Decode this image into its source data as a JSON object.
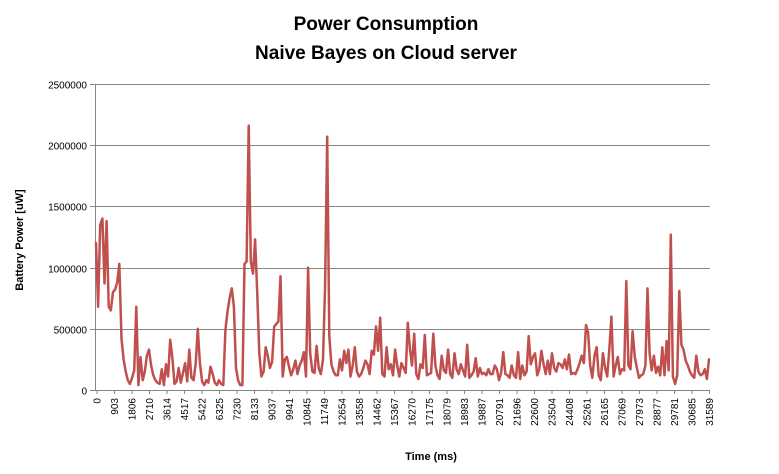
{
  "chart_data": {
    "type": "line",
    "title": [
      "Power Consumption",
      "Naive Bayes on Cloud server"
    ],
    "xlabel": "Time (ms)",
    "ylabel": "Battery Power [uW]",
    "ylim": [
      0,
      2500000
    ],
    "yticks": [
      0,
      500000,
      1000000,
      1500000,
      2000000,
      2500000
    ],
    "ytick_labels": [
      "0",
      "500000",
      "1000000",
      "1500000",
      "2000000",
      "2500000"
    ],
    "xtick_labels": [
      "0",
      "903",
      "1806",
      "2710",
      "3614",
      "4517",
      "5422",
      "6325",
      "7230",
      "8133",
      "9037",
      "9941",
      "10845",
      "11749",
      "12654",
      "13558",
      "14462",
      "15367",
      "16270",
      "17175",
      "18079",
      "18983",
      "19887",
      "20791",
      "21696",
      "22600",
      "23504",
      "24408",
      "25261",
      "26165",
      "27069",
      "27973",
      "28877",
      "29781",
      "30685",
      "31589"
    ],
    "grid": {
      "horizontal": true,
      "vertical": false
    },
    "legend": "none",
    "series_color": "#C0504D",
    "series": [
      {
        "values": [
          1200000,
          680000,
          1350000,
          1400000,
          870000,
          1380000,
          680000,
          650000,
          800000,
          820000,
          880000,
          1030000,
          420000,
          250000,
          150000,
          80000,
          50000,
          100000,
          160000,
          680000,
          40000,
          270000,
          80000,
          150000,
          280000,
          330000,
          200000,
          120000,
          80000,
          60000,
          50000,
          170000,
          40000,
          210000,
          110000,
          410000,
          260000,
          50000,
          70000,
          180000,
          60000,
          140000,
          220000,
          70000,
          330000,
          100000,
          80000,
          220000,
          500000,
          220000,
          70000,
          40000,
          80000,
          60000,
          190000,
          130000,
          60000,
          40000,
          80000,
          50000,
          40000,
          490000,
          640000,
          750000,
          830000,
          680000,
          180000,
          80000,
          40000,
          40000,
          1030000,
          1050000,
          2160000,
          1050000,
          950000,
          1230000,
          800000,
          300000,
          110000,
          150000,
          350000,
          280000,
          180000,
          230000,
          520000,
          540000,
          560000,
          930000,
          110000,
          250000,
          270000,
          190000,
          120000,
          170000,
          240000,
          130000,
          200000,
          240000,
          310000,
          110000,
          1000000,
          300000,
          150000,
          140000,
          360000,
          180000,
          130000,
          250000,
          850000,
          2070000,
          440000,
          210000,
          150000,
          120000,
          120000,
          250000,
          160000,
          320000,
          220000,
          330000,
          110000,
          200000,
          350000,
          150000,
          110000,
          130000,
          180000,
          240000,
          210000,
          130000,
          320000,
          290000,
          520000,
          320000,
          590000,
          130000,
          110000,
          350000,
          170000,
          210000,
          120000,
          330000,
          200000,
          110000,
          220000,
          180000,
          140000,
          550000,
          340000,
          200000,
          460000,
          130000,
          90000,
          210000,
          180000,
          450000,
          120000,
          130000,
          140000,
          460000,
          200000,
          120000,
          90000,
          280000,
          160000,
          140000,
          330000,
          130000,
          100000,
          300000,
          170000,
          130000,
          210000,
          160000,
          110000,
          370000,
          100000,
          120000,
          150000,
          260000,
          110000,
          180000,
          130000,
          140000,
          120000,
          170000,
          130000,
          130000,
          200000,
          170000,
          80000,
          140000,
          310000,
          130000,
          120000,
          100000,
          200000,
          120000,
          100000,
          310000,
          90000,
          200000,
          120000,
          150000,
          440000,
          210000,
          270000,
          300000,
          120000,
          170000,
          320000,
          210000,
          130000,
          240000,
          130000,
          300000,
          180000,
          150000,
          220000,
          210000,
          180000,
          250000,
          170000,
          290000,
          130000,
          140000,
          130000,
          170000,
          220000,
          280000,
          220000,
          530000,
          470000,
          200000,
          100000,
          280000,
          350000,
          120000,
          80000,
          300000,
          180000,
          110000,
          330000,
          600000,
          110000,
          200000,
          270000,
          130000,
          170000,
          160000,
          890000,
          200000,
          170000,
          480000,
          270000,
          180000,
          100000,
          120000,
          130000,
          200000,
          830000,
          300000,
          160000,
          280000,
          140000,
          190000,
          120000,
          350000,
          120000,
          400000,
          160000,
          1270000,
          110000,
          50000,
          120000,
          810000,
          370000,
          330000,
          240000,
          200000,
          150000,
          120000,
          100000,
          280000,
          150000,
          120000,
          130000,
          170000,
          90000,
          250000
        ]
      }
    ]
  }
}
